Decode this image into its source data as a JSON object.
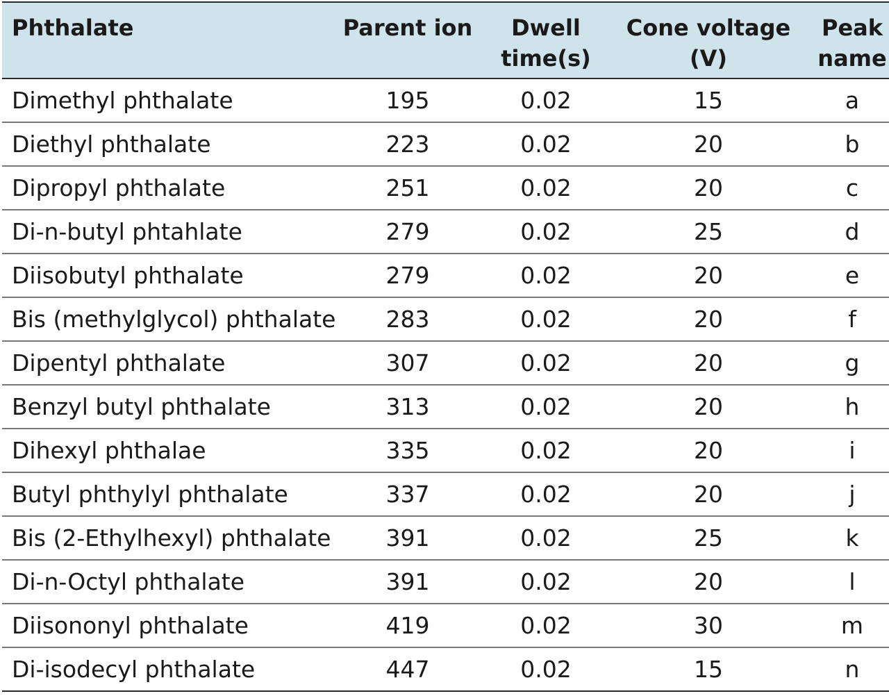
{
  "table": {
    "headers": [
      "Phthalate",
      "Parent ion",
      "Dwell\ntime(s)",
      "Cone voltage\n(V)",
      "Peak\nname"
    ],
    "rows": [
      [
        "Dimethyl phthalate",
        "195",
        "0.02",
        "15",
        "a"
      ],
      [
        "Diethyl phthalate",
        "223",
        "0.02",
        "20",
        "b"
      ],
      [
        "Dipropyl phthalate",
        "251",
        "0.02",
        "20",
        "c"
      ],
      [
        "Di-n-butyl phtahlate",
        "279",
        "0.02",
        "25",
        "d"
      ],
      [
        "Diisobutyl phthalate",
        "279",
        "0.02",
        "20",
        "e"
      ],
      [
        "Bis (methylglycol) phthalate",
        "283",
        "0.02",
        "20",
        "f"
      ],
      [
        "Dipentyl phthalate",
        "307",
        "0.02",
        "20",
        "g"
      ],
      [
        "Benzyl butyl phthalate",
        "313",
        "0.02",
        "20",
        "h"
      ],
      [
        "Dihexyl phthalae",
        "335",
        "0.02",
        "20",
        "i"
      ],
      [
        "Butyl phthylyl phthalate",
        "337",
        "0.02",
        "20",
        "j"
      ],
      [
        "Bis (2-Ethylhexyl) phthalate",
        "391",
        "0.02",
        "25",
        "k"
      ],
      [
        "Di-n-Octyl phthalate",
        "391",
        "0.02",
        "20",
        "l"
      ],
      [
        "Diisononyl phthalate",
        "419",
        "0.02",
        "30",
        "m"
      ],
      [
        "Di-isodecyl phthalate",
        "447",
        "0.02",
        "15",
        "n"
      ]
    ]
  },
  "colors": {
    "header_bg": "#cfe3ea",
    "text": "#1a1a1a",
    "rule": "#777777"
  }
}
